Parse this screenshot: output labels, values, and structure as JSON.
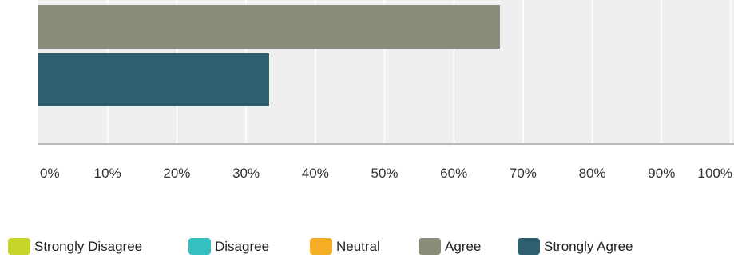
{
  "chart_data": {
    "type": "bar",
    "orientation": "horizontal",
    "xlim": [
      0,
      100
    ],
    "x_tick_values": [
      0,
      10,
      20,
      30,
      40,
      50,
      60,
      70,
      80,
      90,
      100
    ],
    "x_tick_labels": [
      "0%",
      "10%",
      "20%",
      "30%",
      "40%",
      "50%",
      "60%",
      "70%",
      "80%",
      "90%",
      "100%"
    ],
    "grid": true,
    "legend_position": "bottom",
    "series": [
      {
        "name": "Strongly Disagree",
        "color": "#c7d52a",
        "value": 0
      },
      {
        "name": "Disagree",
        "color": "#35bfbf",
        "value": 0
      },
      {
        "name": "Neutral",
        "color": "#f5ae24",
        "value": 0
      },
      {
        "name": "Agree",
        "color": "#8b8b7a",
        "value": 66.67
      },
      {
        "name": "Strongly Agree",
        "color": "#2f5f6e",
        "value": 33.33
      }
    ]
  }
}
